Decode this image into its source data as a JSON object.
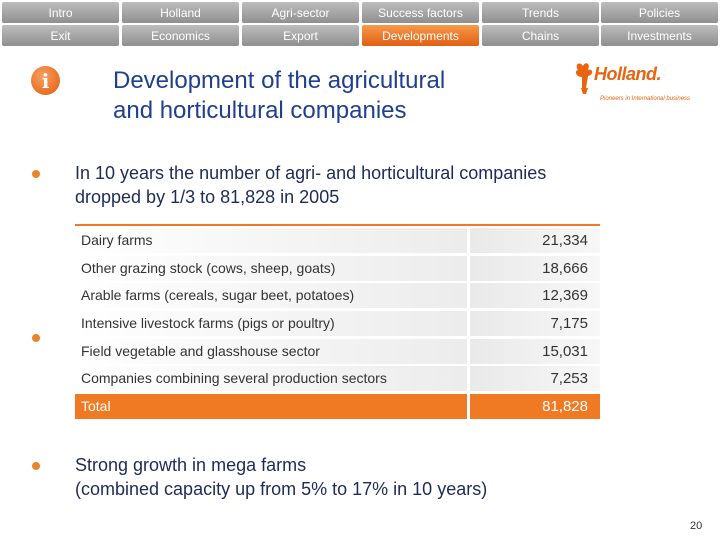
{
  "nav": {
    "row1": [
      "Intro",
      "Holland",
      "Agri-sector",
      "Success factors",
      "Trends",
      "Policies"
    ],
    "row2": [
      "Exit",
      "Economics",
      "Export",
      "Developments",
      "Chains",
      "Investments"
    ]
  },
  "title": {
    "line1": "Development of the agricultural",
    "line2": "and horticultural companies"
  },
  "logo": {
    "word": "Holland.",
    "tagline": "Pioneers in International business"
  },
  "bullets": {
    "b1_line1": "In 10 years the number of agri- and horticultural companies",
    "b1_line2": "dropped by 1/3 to 81,828 in 2005",
    "b3_line1": "Strong growth in mega farms",
    "b3_line2": "(combined capacity up from 5% to 17% in 10 years)"
  },
  "table": {
    "rows": [
      {
        "label": "Dairy farms",
        "value": "21,334"
      },
      {
        "label": "Other grazing stock (cows, sheep, goats)",
        "value": "18,666"
      },
      {
        "label": "Arable farms (cereals, sugar beet, potatoes)",
        "value": "12,369"
      },
      {
        "label": "Intensive livestock farms (pigs or poultry)",
        "value": "7,175"
      },
      {
        "label": "Field vegetable and glasshouse sector",
        "value": "15,031"
      },
      {
        "label": "Companies combining several production sectors",
        "value": "7,253"
      }
    ],
    "total": {
      "label": "Total",
      "value": "81,828"
    }
  },
  "page_number": "20",
  "colors": {
    "accent": "#f07a24",
    "title": "#1f3f8f",
    "nav_gray": "#a6a6a6"
  },
  "icons": {
    "info": "info-icon",
    "logo": "tulip-logo"
  }
}
